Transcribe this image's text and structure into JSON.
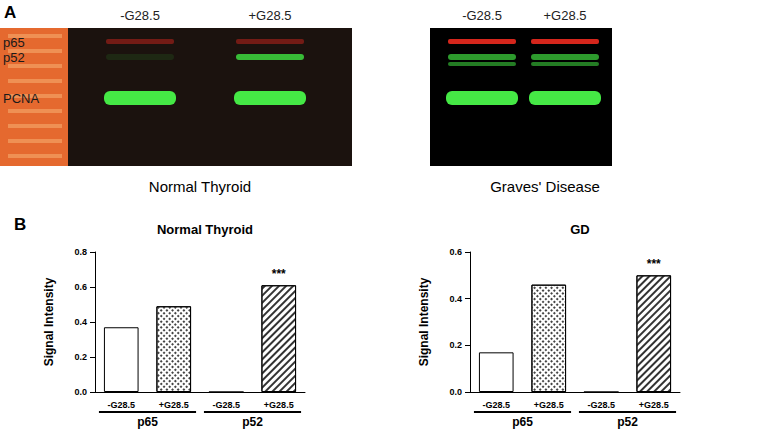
{
  "panel_labels": [
    "A",
    "B"
  ],
  "blots": [
    {
      "caption": "Normal Thyroid",
      "lanes": [
        "-G28.5",
        "+G28.5"
      ],
      "bands": [
        "p65",
        "p52",
        "PCNA"
      ]
    },
    {
      "caption": "Graves' Disease",
      "lanes": [
        "-G28.5",
        "+G28.5"
      ]
    }
  ],
  "chart_data": [
    {
      "type": "bar",
      "title": "Normal Thyroid",
      "y_label": "Signal Intensity",
      "categories": [
        "-G28.5",
        "+G28.5",
        "-G28.5",
        "+G28.5"
      ],
      "groups": [
        "p65",
        "p52"
      ],
      "values": [
        0.37,
        0.49,
        0,
        0.61
      ],
      "colors": [
        "#ffffff",
        "#ffffff",
        "#ffffff",
        "#ffffff"
      ],
      "ylim": [
        0,
        0.8
      ],
      "yticks": [
        {
          "value": 0,
          "label": "0.0"
        },
        0.2,
        0.4,
        0.6,
        0.8
      ],
      "grid": false,
      "annotations": [
        {
          "index": 3,
          "text": "***"
        }
      ]
    },
    {
      "type": "bar",
      "title": "GD",
      "y_label": "Signal Intensity",
      "categories": [
        "-G28.5",
        "+G28.5",
        "-G28.5",
        "+G28.5"
      ],
      "groups": [
        "p65",
        "p52"
      ],
      "values": [
        0.17,
        0.46,
        0,
        0.5
      ],
      "colors": [
        "#ffffff",
        "#ffffff",
        "#ffffff",
        "#ffffff"
      ],
      "ylim": [
        0,
        0.6
      ],
      "yticks": [
        {
          "value": 0,
          "label": "0.0"
        },
        0.2,
        0.4,
        0.6
      ],
      "grid": false,
      "annotations": [
        {
          "index": 3,
          "text": "***"
        }
      ]
    }
  ]
}
